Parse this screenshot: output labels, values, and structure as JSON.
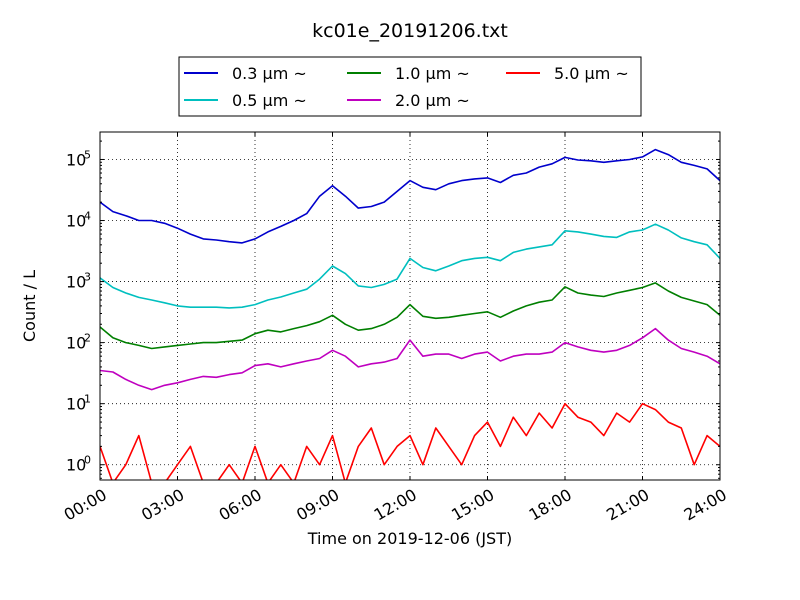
{
  "chart_data": {
    "type": "line",
    "title": "kc01e_20191206.txt",
    "xlabel": "Time on 2019-12-06 (JST)",
    "ylabel": "Count / L",
    "yscale": "log",
    "xlim": [
      0,
      24
    ],
    "ylim_log10": [
      -0.25,
      5.45
    ],
    "grid": "dotted",
    "legend_placement": "top-center",
    "xticks": [
      {
        "value": 0,
        "label": "00:00"
      },
      {
        "value": 3,
        "label": "03:00"
      },
      {
        "value": 6,
        "label": "06:00"
      },
      {
        "value": 9,
        "label": "09:00"
      },
      {
        "value": 12,
        "label": "12:00"
      },
      {
        "value": 15,
        "label": "15:00"
      },
      {
        "value": 18,
        "label": "18:00"
      },
      {
        "value": 21,
        "label": "21:00"
      },
      {
        "value": 24,
        "label": "24:00"
      }
    ],
    "yticks": [
      {
        "exp": 0,
        "base": "10",
        "sup": "0"
      },
      {
        "exp": 1,
        "base": "10",
        "sup": "1"
      },
      {
        "exp": 2,
        "base": "10",
        "sup": "2"
      },
      {
        "exp": 3,
        "base": "10",
        "sup": "3"
      },
      {
        "exp": 4,
        "base": "10",
        "sup": "4"
      },
      {
        "exp": 5,
        "base": "10",
        "sup": "5"
      }
    ],
    "series": [
      {
        "name": "0.3 μm ~",
        "color": "#0000cc",
        "x": [
          0,
          0.5,
          1,
          1.5,
          2,
          2.5,
          3,
          3.5,
          4,
          4.5,
          5,
          5.5,
          6,
          6.5,
          7,
          7.5,
          8,
          8.5,
          9,
          9.5,
          10,
          10.5,
          11,
          11.5,
          12,
          12.5,
          13,
          13.5,
          14,
          14.5,
          15,
          15.5,
          16,
          16.5,
          17,
          17.5,
          18,
          18.5,
          19,
          19.5,
          20,
          20.5,
          21,
          21.5,
          22,
          22.5,
          23,
          23.5,
          24
        ],
        "y": [
          20000,
          14000,
          12000,
          10000,
          10000,
          9000,
          7500,
          6000,
          5000,
          4800,
          4500,
          4300,
          5000,
          6500,
          8000,
          10000,
          13000,
          25000,
          37000,
          25000,
          16000,
          17000,
          20000,
          30000,
          45000,
          35000,
          32000,
          40000,
          45000,
          48000,
          50000,
          42000,
          55000,
          60000,
          75000,
          85000,
          108000,
          98000,
          95000,
          90000,
          95000,
          100000,
          110000,
          145000,
          120000,
          90000,
          80000,
          70000,
          45000
        ]
      },
      {
        "name": "0.5 μm ~",
        "color": "#00bfbf",
        "x": [
          0,
          0.5,
          1,
          1.5,
          2,
          2.5,
          3,
          3.5,
          4,
          4.5,
          5,
          5.5,
          6,
          6.5,
          7,
          7.5,
          8,
          8.5,
          9,
          9.5,
          10,
          10.5,
          11,
          11.5,
          12,
          12.5,
          13,
          13.5,
          14,
          14.5,
          15,
          15.5,
          16,
          16.5,
          17,
          17.5,
          18,
          18.5,
          19,
          19.5,
          20,
          20.5,
          21,
          21.5,
          22,
          22.5,
          23,
          23.5,
          24
        ],
        "y": [
          1150,
          800,
          650,
          550,
          500,
          450,
          400,
          380,
          380,
          380,
          370,
          380,
          420,
          500,
          560,
          650,
          750,
          1100,
          1800,
          1350,
          850,
          800,
          900,
          1100,
          2400,
          1700,
          1500,
          1800,
          2200,
          2400,
          2500,
          2200,
          3000,
          3400,
          3700,
          4000,
          6800,
          6500,
          6000,
          5500,
          5300,
          6500,
          7000,
          8700,
          7000,
          5200,
          4500,
          4000,
          2400
        ]
      },
      {
        "name": "1.0 μm ~",
        "color": "#007f00",
        "x": [
          0,
          0.5,
          1,
          1.5,
          2,
          2.5,
          3,
          3.5,
          4,
          4.5,
          5,
          5.5,
          6,
          6.5,
          7,
          7.5,
          8,
          8.5,
          9,
          9.5,
          10,
          10.5,
          11,
          11.5,
          12,
          12.5,
          13,
          13.5,
          14,
          14.5,
          15,
          15.5,
          16,
          16.5,
          17,
          17.5,
          18,
          18.5,
          19,
          19.5,
          20,
          20.5,
          21,
          21.5,
          22,
          22.5,
          23,
          23.5,
          24
        ],
        "y": [
          180,
          120,
          100,
          90,
          80,
          85,
          90,
          95,
          100,
          100,
          105,
          110,
          140,
          160,
          150,
          170,
          190,
          220,
          280,
          200,
          160,
          170,
          200,
          260,
          420,
          270,
          250,
          260,
          280,
          300,
          320,
          260,
          330,
          400,
          460,
          500,
          820,
          650,
          600,
          570,
          650,
          720,
          800,
          950,
          700,
          550,
          480,
          420,
          280
        ]
      },
      {
        "name": "2.0 μm ~",
        "color": "#bf00bf",
        "x": [
          0,
          0.5,
          1,
          1.5,
          2,
          2.5,
          3,
          3.5,
          4,
          4.5,
          5,
          5.5,
          6,
          6.5,
          7,
          7.5,
          8,
          8.5,
          9,
          9.5,
          10,
          10.5,
          11,
          11.5,
          12,
          12.5,
          13,
          13.5,
          14,
          14.5,
          15,
          15.5,
          16,
          16.5,
          17,
          17.5,
          18,
          18.5,
          19,
          19.5,
          20,
          20.5,
          21,
          21.5,
          22,
          22.5,
          23,
          23.5,
          24
        ],
        "y": [
          35,
          33,
          25,
          20,
          17,
          20,
          22,
          25,
          28,
          27,
          30,
          32,
          42,
          45,
          40,
          45,
          50,
          55,
          75,
          60,
          40,
          45,
          48,
          55,
          110,
          60,
          65,
          65,
          55,
          65,
          70,
          50,
          60,
          65,
          65,
          70,
          100,
          85,
          75,
          70,
          75,
          90,
          120,
          170,
          110,
          80,
          70,
          60,
          45
        ]
      },
      {
        "name": "5.0 μm ~",
        "color": "#ff0000",
        "x": [
          0,
          0.5,
          1,
          1.5,
          2,
          2.5,
          3,
          3.5,
          4,
          4.5,
          5,
          5.5,
          6,
          6.5,
          7,
          7.5,
          8,
          8.5,
          9,
          9.5,
          10,
          10.5,
          11,
          11.5,
          12,
          12.5,
          13,
          13.5,
          14,
          14.5,
          15,
          15.5,
          16,
          16.5,
          17,
          17.5,
          18,
          18.5,
          19,
          19.5,
          20,
          20.5,
          21,
          21.5,
          22,
          22.5,
          23,
          23.5,
          24
        ],
        "y": [
          2,
          0.5,
          1,
          3,
          0.5,
          0.5,
          1,
          2,
          0.5,
          0.5,
          1,
          0.5,
          2,
          0.5,
          1,
          0.5,
          2,
          1,
          3,
          0.5,
          2,
          4,
          1,
          2,
          3,
          1,
          4,
          2,
          1,
          3,
          5,
          2,
          6,
          3,
          7,
          4,
          10,
          6,
          5,
          3,
          7,
          5,
          10,
          8,
          5,
          4,
          1,
          3,
          2
        ]
      }
    ]
  }
}
